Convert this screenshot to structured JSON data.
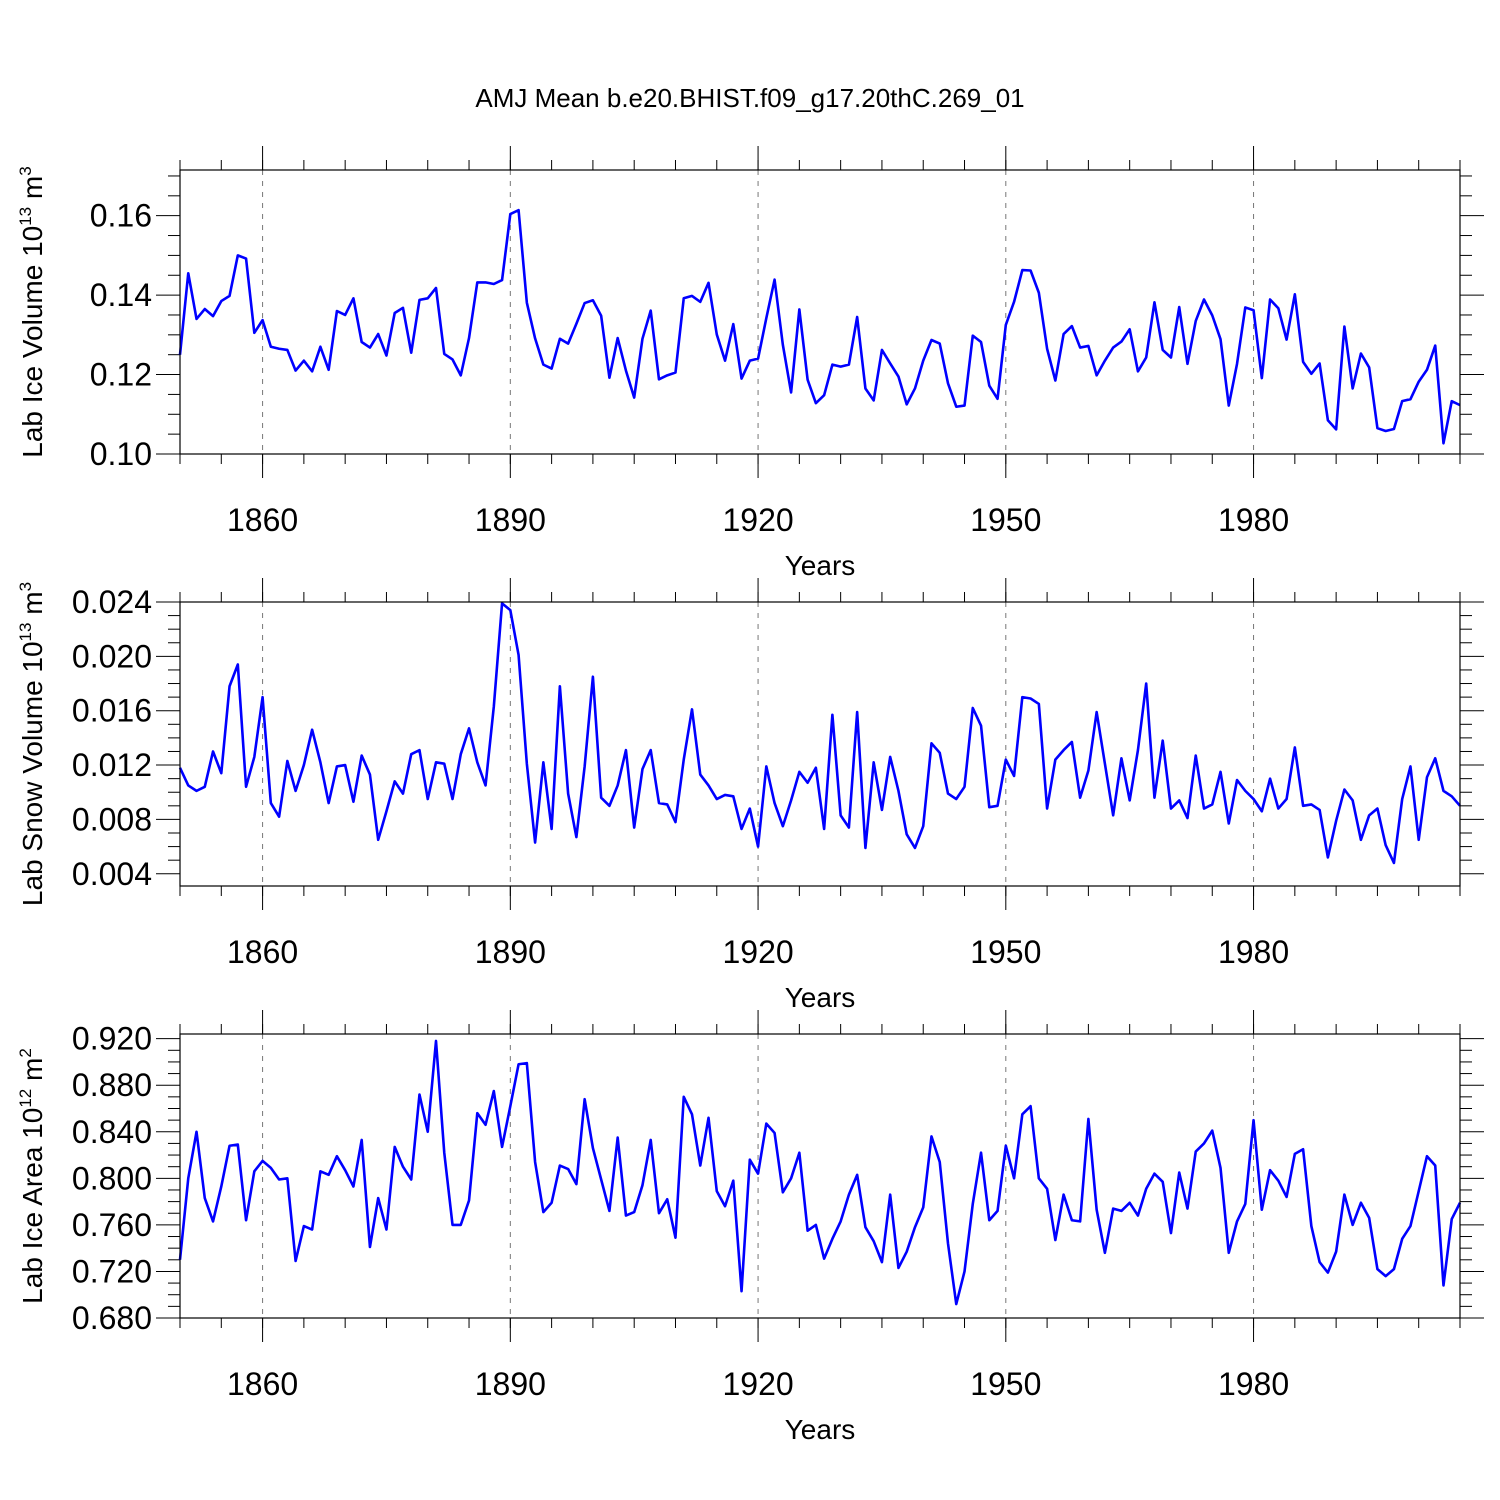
{
  "title": "AMJ Mean b.e20.BHIST.f09_g17.20thC.269_01",
  "chart_data": [
    {
      "type": "line",
      "ylabel": "Lab Ice Volume 10",
      "ylabel_sup": "13",
      "ylabel_unit": " m",
      "ylabel_unit_sup": "3",
      "xlabel": "Years",
      "xlim": [
        1850,
        2005
      ],
      "ylim": [
        0.1,
        0.1715
      ],
      "yticks": [
        "0.10",
        "0.12",
        "0.14",
        "0.16"
      ],
      "xticks": [
        "1860",
        "1890",
        "1920",
        "1950",
        "1980"
      ],
      "x_start": 1850,
      "color": "#0000ff",
      "values": [
        0.125,
        0.1455,
        0.134,
        0.1365,
        0.1347,
        0.1385,
        0.1398,
        0.15,
        0.1492,
        0.1305,
        0.1337,
        0.127,
        0.1265,
        0.1262,
        0.121,
        0.1235,
        0.1208,
        0.127,
        0.1212,
        0.136,
        0.135,
        0.1392,
        0.1282,
        0.1268,
        0.1302,
        0.1248,
        0.1355,
        0.1368,
        0.1255,
        0.1388,
        0.1392,
        0.1418,
        0.1252,
        0.1238,
        0.1198,
        0.1292,
        0.1432,
        0.1432,
        0.1428,
        0.1438,
        0.1604,
        0.1614,
        0.1381,
        0.1291,
        0.1225,
        0.1215,
        0.129,
        0.1278,
        0.1328,
        0.138,
        0.1387,
        0.1348,
        0.1192,
        0.1292,
        0.121,
        0.1142,
        0.129,
        0.1361,
        0.1188,
        0.1198,
        0.1205,
        0.1392,
        0.1398,
        0.1383,
        0.1431,
        0.1301,
        0.1235,
        0.1327,
        0.119,
        0.1235,
        0.124,
        0.1342,
        0.1439,
        0.1275,
        0.1155,
        0.1364,
        0.1187,
        0.1128,
        0.1148,
        0.1225,
        0.122,
        0.1225,
        0.1345,
        0.1165,
        0.1135,
        0.1262,
        0.1228,
        0.1195,
        0.1125,
        0.1165,
        0.1235,
        0.1287,
        0.1278,
        0.1178,
        0.1119,
        0.1122,
        0.1298,
        0.1282,
        0.1172,
        0.1139,
        0.1325,
        0.1383,
        0.1463,
        0.1462,
        0.1406,
        0.1265,
        0.1185,
        0.1302,
        0.1322,
        0.1268,
        0.1272,
        0.1198,
        0.1235,
        0.1268,
        0.1283,
        0.1314,
        0.1208,
        0.1243,
        0.1382,
        0.1262,
        0.1243,
        0.137,
        0.1227,
        0.1335,
        0.1389,
        0.1349,
        0.1289,
        0.1122,
        0.1227,
        0.1369,
        0.1362,
        0.1191,
        0.1389,
        0.1367,
        0.1288,
        0.1402,
        0.1232,
        0.1202,
        0.1228,
        0.1085,
        0.1062,
        0.1321,
        0.1165,
        0.1253,
        0.1218,
        0.1065,
        0.1058,
        0.1063,
        0.1133,
        0.1138,
        0.1182,
        0.1212,
        0.1273,
        0.1027,
        0.1133,
        0.1123
      ]
    },
    {
      "type": "line",
      "ylabel": "Lab Snow Volume 10",
      "ylabel_sup": "13",
      "ylabel_unit": " m",
      "ylabel_unit_sup": "3",
      "xlabel": "Years",
      "xlim": [
        1850,
        2005
      ],
      "ylim": [
        0.0031,
        0.024
      ],
      "yticks": [
        "0.004",
        "0.008",
        "0.012",
        "0.016",
        "0.020",
        "0.024"
      ],
      "xticks": [
        "1860",
        "1890",
        "1920",
        "1950",
        "1980"
      ],
      "x_start": 1850,
      "color": "#0000ff",
      "values": [
        0.0118,
        0.0105,
        0.0101,
        0.0104,
        0.013,
        0.0114,
        0.0178,
        0.0194,
        0.0104,
        0.0126,
        0.017,
        0.0092,
        0.0082,
        0.0123,
        0.0101,
        0.012,
        0.0146,
        0.0122,
        0.0092,
        0.0119,
        0.012,
        0.0093,
        0.0127,
        0.0113,
        0.0065,
        0.0086,
        0.0108,
        0.0099,
        0.0128,
        0.0131,
        0.0095,
        0.0122,
        0.0121,
        0.0095,
        0.0128,
        0.0147,
        0.0122,
        0.0105,
        0.0163,
        0.0239,
        0.0234,
        0.0201,
        0.0121,
        0.0063,
        0.0122,
        0.0073,
        0.0178,
        0.0099,
        0.0067,
        0.0119,
        0.0185,
        0.0096,
        0.009,
        0.0105,
        0.0131,
        0.0074,
        0.0117,
        0.0131,
        0.0092,
        0.0091,
        0.0078,
        0.0124,
        0.0161,
        0.0113,
        0.0105,
        0.0095,
        0.0098,
        0.0097,
        0.0073,
        0.0088,
        0.006,
        0.0119,
        0.0092,
        0.0075,
        0.0094,
        0.0115,
        0.0107,
        0.0118,
        0.0073,
        0.0157,
        0.0083,
        0.0074,
        0.0159,
        0.0059,
        0.0122,
        0.0087,
        0.0126,
        0.0101,
        0.0069,
        0.0059,
        0.0075,
        0.0136,
        0.0129,
        0.0099,
        0.0095,
        0.0104,
        0.0162,
        0.0149,
        0.0089,
        0.009,
        0.0124,
        0.0112,
        0.017,
        0.0169,
        0.0165,
        0.0088,
        0.0124,
        0.0131,
        0.0137,
        0.0096,
        0.0116,
        0.0159,
        0.0121,
        0.0083,
        0.0125,
        0.0094,
        0.0131,
        0.018,
        0.0096,
        0.0138,
        0.0088,
        0.0094,
        0.0081,
        0.0127,
        0.0088,
        0.0091,
        0.0115,
        0.0077,
        0.0109,
        0.0101,
        0.0095,
        0.0086,
        0.011,
        0.0088,
        0.0095,
        0.0133,
        0.009,
        0.0091,
        0.0087,
        0.0052,
        0.0079,
        0.0102,
        0.0094,
        0.0065,
        0.0083,
        0.0088,
        0.0061,
        0.0048,
        0.0095,
        0.0119,
        0.0065,
        0.0111,
        0.0125,
        0.0101,
        0.0097,
        0.009
      ]
    },
    {
      "type": "line",
      "ylabel": "Lab Ice Area 10",
      "ylabel_sup": "12",
      "ylabel_unit": " m",
      "ylabel_unit_sup": "2",
      "xlabel": "Years",
      "xlim": [
        1850,
        2005
      ],
      "ylim": [
        0.68,
        0.924
      ],
      "yticks": [
        "0.680",
        "0.720",
        "0.760",
        "0.800",
        "0.840",
        "0.880",
        "0.920"
      ],
      "xticks": [
        "1860",
        "1890",
        "1920",
        "1950",
        "1980"
      ],
      "x_start": 1850,
      "color": "#0000ff",
      "values": [
        0.73,
        0.8,
        0.84,
        0.783,
        0.763,
        0.793,
        0.828,
        0.829,
        0.764,
        0.806,
        0.815,
        0.809,
        0.799,
        0.8,
        0.729,
        0.759,
        0.756,
        0.806,
        0.803,
        0.819,
        0.807,
        0.793,
        0.833,
        0.741,
        0.783,
        0.756,
        0.827,
        0.81,
        0.799,
        0.872,
        0.84,
        0.918,
        0.822,
        0.76,
        0.76,
        0.781,
        0.856,
        0.846,
        0.875,
        0.827,
        0.862,
        0.898,
        0.899,
        0.814,
        0.771,
        0.779,
        0.811,
        0.808,
        0.795,
        0.868,
        0.826,
        0.799,
        0.772,
        0.835,
        0.768,
        0.771,
        0.794,
        0.833,
        0.77,
        0.782,
        0.749,
        0.87,
        0.855,
        0.811,
        0.852,
        0.789,
        0.776,
        0.798,
        0.703,
        0.816,
        0.804,
        0.847,
        0.839,
        0.788,
        0.8,
        0.822,
        0.755,
        0.76,
        0.731,
        0.748,
        0.763,
        0.786,
        0.803,
        0.758,
        0.746,
        0.728,
        0.786,
        0.723,
        0.737,
        0.758,
        0.775,
        0.836,
        0.814,
        0.744,
        0.692,
        0.72,
        0.778,
        0.822,
        0.764,
        0.772,
        0.828,
        0.8,
        0.855,
        0.862,
        0.8,
        0.791,
        0.747,
        0.786,
        0.764,
        0.763,
        0.851,
        0.773,
        0.736,
        0.774,
        0.772,
        0.779,
        0.768,
        0.791,
        0.804,
        0.797,
        0.753,
        0.805,
        0.774,
        0.823,
        0.83,
        0.841,
        0.809,
        0.736,
        0.763,
        0.778,
        0.85,
        0.773,
        0.807,
        0.798,
        0.784,
        0.821,
        0.825,
        0.759,
        0.728,
        0.719,
        0.737,
        0.786,
        0.76,
        0.779,
        0.766,
        0.722,
        0.716,
        0.722,
        0.748,
        0.759,
        0.789,
        0.819,
        0.811,
        0.708,
        0.765,
        0.779
      ]
    }
  ]
}
